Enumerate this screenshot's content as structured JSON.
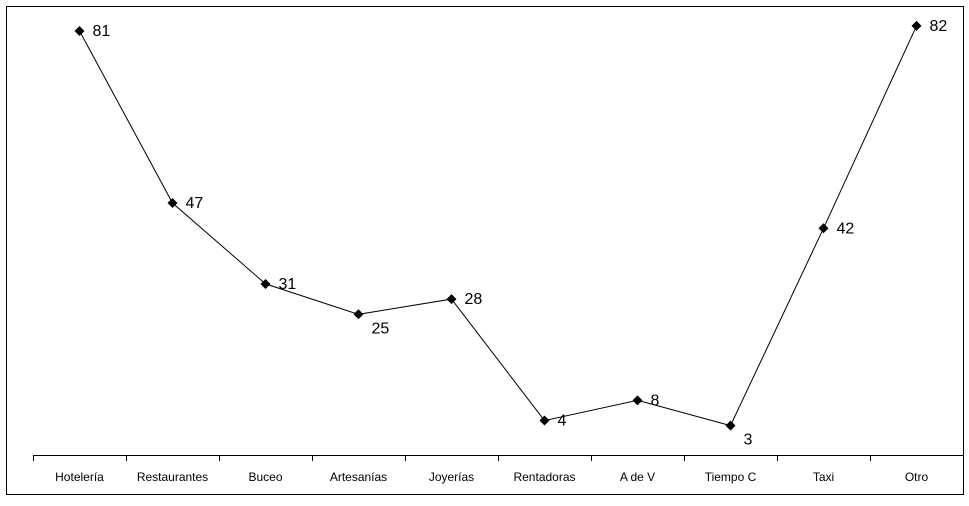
{
  "chart_data": {
    "type": "line",
    "title": "",
    "xlabel": "",
    "ylabel": "",
    "categories": [
      "Hotelería",
      "Restaurantes",
      "Buceo",
      "Artesanías",
      "Joyerías",
      "Rentadoras",
      "A de V",
      "Tiempo C",
      "Taxi",
      "Otro"
    ],
    "series": [
      {
        "values": [
          81,
          47,
          31,
          25,
          28,
          4,
          8,
          3,
          42,
          82
        ],
        "labels": [
          "81",
          "47",
          "31",
          "25",
          "28",
          "4",
          "8",
          "3",
          "42",
          "82"
        ],
        "marker": "diamond"
      }
    ],
    "data_labels": true,
    "grid": false,
    "legend": "none",
    "colors": {
      "line": "#000000",
      "marker": "#000000",
      "axis": "#000000",
      "frame": "#000000",
      "background": "#ffffff"
    }
  }
}
